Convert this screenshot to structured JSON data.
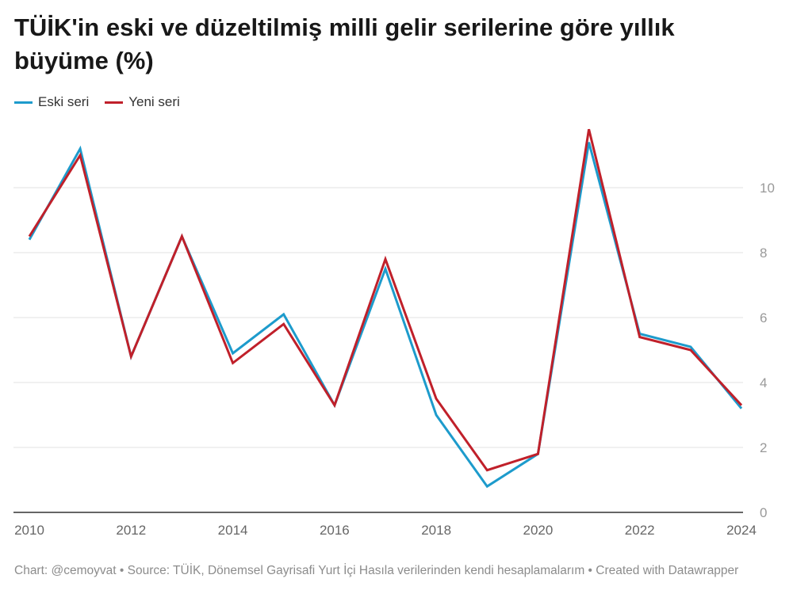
{
  "title": "TÜİK'in eski ve düzeltilmiş milli gelir serilerine göre yıllık büyüme (%)",
  "footer": "Chart: @cemoyvat • Source: TÜİK, Dönemsel Gayrisafi Yurt İçi Hasıla verilerinden kendi hesaplamalarım  • Created with Datawrapper",
  "colors": {
    "eski": "#1d9bcc",
    "yeni": "#c0202a",
    "grid": "#e2e2e2",
    "axis": "#333333"
  },
  "chart_data": {
    "type": "line",
    "x": [
      2010,
      2011,
      2012,
      2013,
      2014,
      2015,
      2016,
      2017,
      2018,
      2019,
      2020,
      2021,
      2022,
      2023,
      2024
    ],
    "xticks": [
      "2010",
      "2012",
      "2014",
      "2016",
      "2018",
      "2020",
      "2022",
      "2024"
    ],
    "yticks": [
      "0",
      "2",
      "4",
      "6",
      "8",
      "10"
    ],
    "ylim": [
      0,
      12
    ],
    "xlim": [
      2010,
      2024
    ],
    "grid": true,
    "legend_position": "top-left",
    "series": [
      {
        "name": "Eski seri",
        "color": "#1d9bcc",
        "values": [
          8.4,
          11.2,
          4.8,
          8.5,
          4.9,
          6.1,
          3.3,
          7.5,
          3.0,
          0.8,
          1.8,
          11.4,
          5.5,
          5.1,
          3.2
        ]
      },
      {
        "name": "Yeni seri",
        "color": "#c0202a",
        "values": [
          8.5,
          11.0,
          4.8,
          8.5,
          4.6,
          5.8,
          3.3,
          7.8,
          3.5,
          1.3,
          1.8,
          11.8,
          5.4,
          5.0,
          3.3
        ]
      }
    ]
  }
}
